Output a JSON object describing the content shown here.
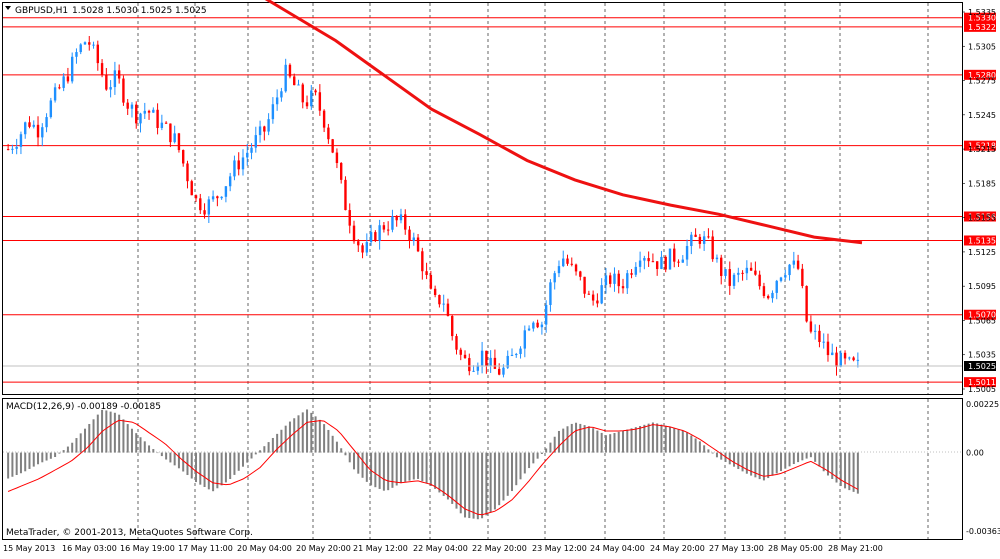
{
  "window": {
    "symbol_title": "GBPUSD,H1",
    "ohlc": "1.5028 1.5030 1.5025 1.5025",
    "copyright": "MetaTrader, © 2001-2013, MetaQuotes Software Corp."
  },
  "price_scale": {
    "labels": [
      "1.5335",
      "1.5305",
      "1.5275",
      "1.5245",
      "1.5215",
      "1.5185",
      "1.5155",
      "1.5125",
      "1.5095",
      "1.5065",
      "1.5035",
      "1.5005"
    ],
    "current_price": "1.5025"
  },
  "levels": [
    "1.5330",
    "1.5322",
    "1.5280",
    "1.5218",
    "1.5156",
    "1.5135",
    "1.5070",
    "1.5011"
  ],
  "time_axis": [
    "15 May 2013",
    "16 May 03:00",
    "16 May 19:00",
    "17 May 11:00",
    "20 May 04:00",
    "20 May 20:00",
    "21 May 12:00",
    "22 May 04:00",
    "22 May 20:00",
    "23 May 12:00",
    "24 May 04:00",
    "24 May 20:00",
    "27 May 13:00",
    "28 May 05:00",
    "28 May 21:00"
  ],
  "macd": {
    "title": "MACD(12,26,9) -0.00189 -0.00185",
    "scale": [
      "0.00225",
      "0.00",
      "-0.00363"
    ]
  },
  "colors": {
    "bull": "#1e90ff",
    "bear": "#ff0000",
    "ma": "#ee1111",
    "level": "#ff0000",
    "hist": "#808080",
    "signal": "#ff0000"
  },
  "chart_data": {
    "type": "candlestick",
    "symbol": "GBPUSD",
    "timeframe": "H1",
    "ohlc_last": {
      "open": 1.5028,
      "high": 1.503,
      "low": 1.5025,
      "close": 1.5025
    },
    "price_range": [
      1.4995,
      1.534
    ],
    "price_anchors": [
      1.5335,
      1.5005
    ],
    "horizontal_levels": [
      1.533,
      1.5322,
      1.528,
      1.5218,
      1.5156,
      1.5135,
      1.507,
      1.5011
    ],
    "price_path": [
      1.5215,
      1.5225,
      1.524,
      1.5232,
      1.525,
      1.5265,
      1.528,
      1.53,
      1.5312,
      1.5292,
      1.527,
      1.5278,
      1.5256,
      1.5245,
      1.525,
      1.524,
      1.5232,
      1.5222,
      1.5195,
      1.517,
      1.5165,
      1.5172,
      1.5185,
      1.52,
      1.521,
      1.5222,
      1.5232,
      1.5255,
      1.5282,
      1.527,
      1.5255,
      1.5262,
      1.524,
      1.521,
      1.517,
      1.5142,
      1.5122,
      1.514,
      1.5148,
      1.5152,
      1.515,
      1.5135,
      1.5112,
      1.508,
      1.5085,
      1.505,
      1.503,
      1.5028,
      1.5036,
      1.5022,
      1.502,
      1.5032,
      1.505,
      1.507,
      1.5062,
      1.51,
      1.5122,
      1.511,
      1.5098,
      1.508,
      1.5092,
      1.5102,
      1.5095,
      1.511,
      1.5126,
      1.512,
      1.5114,
      1.512,
      1.5122,
      1.5132,
      1.5138,
      1.513,
      1.511,
      1.5098,
      1.5104,
      1.5108,
      1.5096,
      1.5088,
      1.5106,
      1.5114,
      1.511,
      1.5054,
      1.505,
      1.5036,
      1.503,
      1.5026,
      1.5025
    ],
    "moving_average": [
      1.536,
      1.5335,
      1.531,
      1.528,
      1.525,
      1.5228,
      1.5205,
      1.5188,
      1.5175,
      1.5166,
      1.5158,
      1.5148,
      1.5138,
      1.5133
    ],
    "macd": {
      "params": "12,26,9",
      "main": -0.00189,
      "signal": -0.00185,
      "scale_range": [
        -0.00363,
        0.00225
      ],
      "histogram": [
        -0.0012,
        -0.0009,
        -0.0005,
        -0.0002,
        0.0004,
        0.0012,
        0.002,
        0.0018,
        0.001,
        0.0003,
        -0.0003,
        -0.0008,
        -0.0014,
        -0.0018,
        -0.0013,
        -0.0006,
        0.0001,
        0.0008,
        0.0015,
        0.002,
        0.0014,
        0.0004,
        -0.0008,
        -0.0015,
        -0.0018,
        -0.0014,
        -0.0012,
        -0.0016,
        -0.0022,
        -0.003,
        -0.0031,
        -0.0026,
        -0.0018,
        -0.0008,
        0.0,
        0.001,
        0.0014,
        0.0012,
        0.0008,
        0.001,
        0.0012,
        0.0014,
        0.0012,
        0.001,
        0.0005,
        -0.0002,
        -0.0006,
        -0.001,
        -0.0013,
        -0.0009,
        -0.0005,
        -0.0002,
        -0.001,
        -0.0016,
        -0.0019
      ],
      "signal_line": [
        -0.0018,
        -0.0015,
        -0.0012,
        -0.0008,
        -0.0004,
        0.0002,
        0.001,
        0.0015,
        0.0014,
        0.0009,
        0.0004,
        -0.0003,
        -0.0009,
        -0.0014,
        -0.0015,
        -0.0012,
        -0.0007,
        0.0001,
        0.0008,
        0.0014,
        0.0015,
        0.001,
        0.0001,
        -0.0008,
        -0.0013,
        -0.0014,
        -0.0013,
        -0.0015,
        -0.002,
        -0.0026,
        -0.0029,
        -0.0027,
        -0.0022,
        -0.0014,
        -0.0005,
        0.0003,
        0.001,
        0.0012,
        0.001,
        0.001,
        0.0011,
        0.0013,
        0.0012,
        0.001,
        0.0006,
        0.0001,
        -0.0004,
        -0.0008,
        -0.0011,
        -0.001,
        -0.0007,
        -0.0004,
        -0.0008,
        -0.0013,
        -0.0017
      ]
    }
  }
}
